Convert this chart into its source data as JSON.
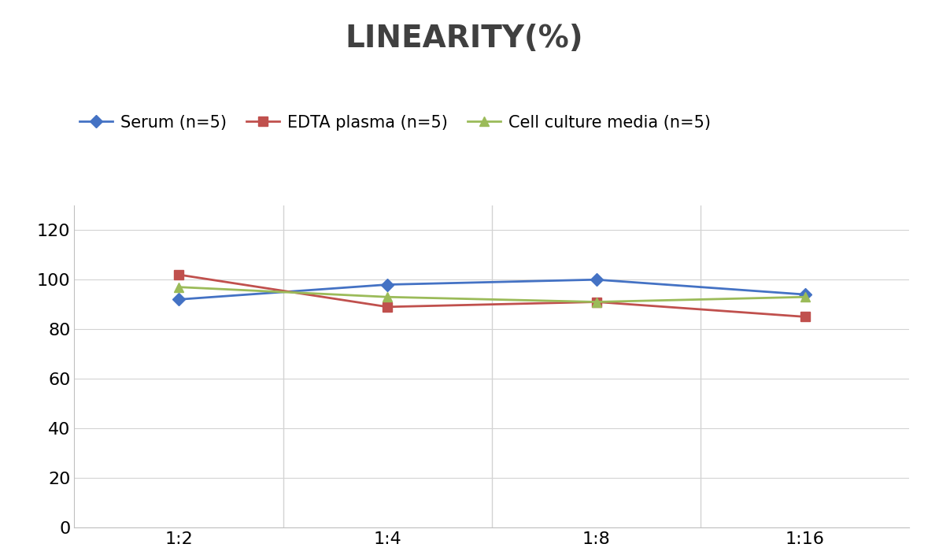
{
  "title": "LINEARITY(%)",
  "x_labels": [
    "1:2",
    "1:4",
    "1:8",
    "1:16"
  ],
  "x_positions": [
    0,
    1,
    2,
    3
  ],
  "series": [
    {
      "name": "Serum (n=5)",
      "values": [
        92,
        98,
        100,
        94
      ],
      "color": "#4472C4",
      "marker": "D",
      "linewidth": 2,
      "markersize": 8
    },
    {
      "name": "EDTA plasma (n=5)",
      "values": [
        102,
        89,
        91,
        85
      ],
      "color": "#C0504D",
      "marker": "s",
      "linewidth": 2,
      "markersize": 8
    },
    {
      "name": "Cell culture media (n=5)",
      "values": [
        97,
        93,
        91,
        93
      ],
      "color": "#9BBB59",
      "marker": "^",
      "linewidth": 2,
      "markersize": 8
    }
  ],
  "ylim": [
    0,
    130
  ],
  "yticks": [
    0,
    20,
    40,
    60,
    80,
    100,
    120
  ],
  "background_color": "#ffffff",
  "grid_color": "#d3d3d3",
  "title_fontsize": 28,
  "tick_fontsize": 16,
  "legend_fontsize": 15,
  "title_color": "#404040"
}
